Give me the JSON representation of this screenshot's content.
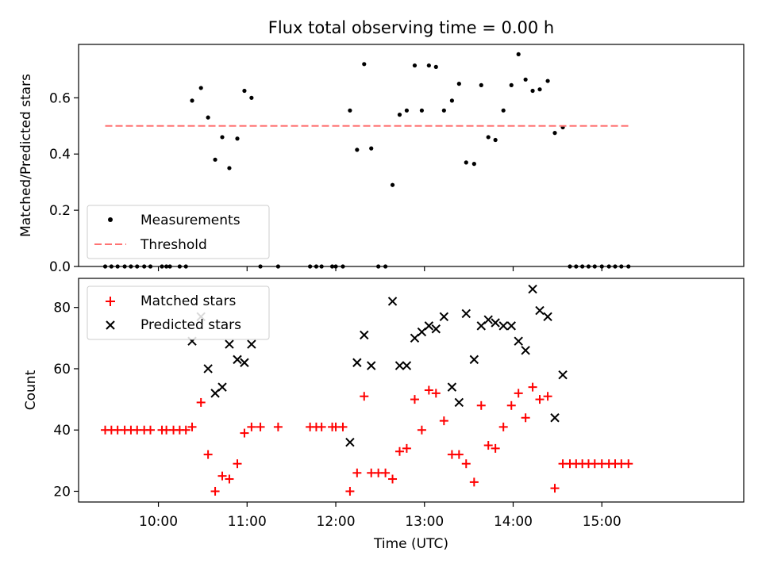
{
  "chart_data": [
    {
      "type": "scatter",
      "title": "Flux total observing time = 0.00 h",
      "xlabel": "",
      "ylabel": "Matched/Predicted stars",
      "xlim": [
        9.1,
        16.6
      ],
      "ylim": [
        0.0,
        0.79
      ],
      "yticks": [
        0.0,
        0.2,
        0.4,
        0.6
      ],
      "ytick_labels": [
        "0.0",
        "0.2",
        "0.4",
        "0.6"
      ],
      "xticks": [
        10,
        11,
        12,
        13,
        14,
        15
      ],
      "legend_position": "lower-left",
      "series": [
        {
          "name": "Measurements",
          "marker": "dot",
          "color": "#000000",
          "points": [
            [
              9.4,
              0
            ],
            [
              9.47,
              0
            ],
            [
              9.54,
              0
            ],
            [
              9.62,
              0
            ],
            [
              9.69,
              0
            ],
            [
              9.76,
              0
            ],
            [
              9.84,
              0
            ],
            [
              9.91,
              0
            ],
            [
              10.04,
              0
            ],
            [
              10.09,
              0
            ],
            [
              10.13,
              0
            ],
            [
              10.24,
              0
            ],
            [
              10.31,
              0
            ],
            [
              10.38,
              0.59
            ],
            [
              10.48,
              0.635
            ],
            [
              10.56,
              0.53
            ],
            [
              10.64,
              0.38
            ],
            [
              10.72,
              0.46
            ],
            [
              10.8,
              0.35
            ],
            [
              10.89,
              0.455
            ],
            [
              10.97,
              0.625
            ],
            [
              11.05,
              0.6
            ],
            [
              11.15,
              0
            ],
            [
              11.35,
              0
            ],
            [
              11.71,
              0
            ],
            [
              11.78,
              0
            ],
            [
              11.84,
              0
            ],
            [
              11.96,
              0
            ],
            [
              12.0,
              0
            ],
            [
              12.08,
              0
            ],
            [
              12.16,
              0.555
            ],
            [
              12.24,
              0.415
            ],
            [
              12.32,
              0.72
            ],
            [
              12.4,
              0.42
            ],
            [
              12.48,
              0
            ],
            [
              12.56,
              0
            ],
            [
              12.64,
              0.29
            ],
            [
              12.72,
              0.54
            ],
            [
              12.8,
              0.555
            ],
            [
              12.89,
              0.715
            ],
            [
              12.97,
              0.555
            ],
            [
              13.05,
              0.715
            ],
            [
              13.13,
              0.71
            ],
            [
              13.22,
              0.555
            ],
            [
              13.31,
              0.59
            ],
            [
              13.39,
              0.65
            ],
            [
              13.47,
              0.37
            ],
            [
              13.56,
              0.365
            ],
            [
              13.64,
              0.645
            ],
            [
              13.72,
              0.46
            ],
            [
              13.8,
              0.45
            ],
            [
              13.89,
              0.555
            ],
            [
              13.98,
              0.645
            ],
            [
              14.06,
              0.755
            ],
            [
              14.14,
              0.665
            ],
            [
              14.22,
              0.625
            ],
            [
              14.3,
              0.63
            ],
            [
              14.39,
              0.66
            ],
            [
              14.47,
              0.475
            ],
            [
              14.56,
              0.495
            ],
            [
              14.64,
              0
            ],
            [
              14.71,
              0
            ],
            [
              14.78,
              0
            ],
            [
              14.85,
              0
            ],
            [
              14.92,
              0
            ],
            [
              15.0,
              0
            ],
            [
              15.08,
              0
            ],
            [
              15.15,
              0
            ],
            [
              15.22,
              0
            ],
            [
              15.3,
              0
            ]
          ]
        },
        {
          "name": "Threshold",
          "style": "dashed",
          "color": "#ff7373",
          "x": [
            9.4,
            15.3
          ],
          "y": [
            0.5,
            0.5
          ]
        }
      ]
    },
    {
      "type": "scatter",
      "title": "",
      "xlabel": "Time (UTC)",
      "ylabel": "Count",
      "xlim": [
        9.1,
        16.6
      ],
      "ylim": [
        16.5,
        89.5
      ],
      "yticks": [
        20,
        40,
        60,
        80
      ],
      "ytick_labels": [
        "20",
        "40",
        "60",
        "80"
      ],
      "xticks": [
        10,
        11,
        12,
        13,
        14,
        15
      ],
      "xtick_labels": [
        "10:00",
        "11:00",
        "12:00",
        "13:00",
        "14:00",
        "15:00"
      ],
      "legend_position": "upper-left",
      "series": [
        {
          "name": "Matched stars",
          "marker": "plus",
          "color": "#ff0000",
          "points": [
            [
              9.4,
              40
            ],
            [
              9.47,
              40
            ],
            [
              9.54,
              40
            ],
            [
              9.62,
              40
            ],
            [
              9.69,
              40
            ],
            [
              9.76,
              40
            ],
            [
              9.84,
              40
            ],
            [
              9.91,
              40
            ],
            [
              10.04,
              40
            ],
            [
              10.09,
              40
            ],
            [
              10.17,
              40
            ],
            [
              10.24,
              40
            ],
            [
              10.31,
              40
            ],
            [
              10.38,
              41
            ],
            [
              10.48,
              49
            ],
            [
              10.56,
              32
            ],
            [
              10.64,
              20
            ],
            [
              10.72,
              25
            ],
            [
              10.8,
              24
            ],
            [
              10.89,
              29
            ],
            [
              10.97,
              39
            ],
            [
              11.05,
              41
            ],
            [
              11.15,
              41
            ],
            [
              11.35,
              41
            ],
            [
              11.71,
              41
            ],
            [
              11.78,
              41
            ],
            [
              11.84,
              41
            ],
            [
              11.96,
              41
            ],
            [
              12.0,
              41
            ],
            [
              12.08,
              41
            ],
            [
              12.16,
              20
            ],
            [
              12.24,
              26
            ],
            [
              12.32,
              51
            ],
            [
              12.4,
              26
            ],
            [
              12.48,
              26
            ],
            [
              12.56,
              26
            ],
            [
              12.64,
              24
            ],
            [
              12.72,
              33
            ],
            [
              12.8,
              34
            ],
            [
              12.89,
              50
            ],
            [
              12.97,
              40
            ],
            [
              13.05,
              53
            ],
            [
              13.13,
              52
            ],
            [
              13.22,
              43
            ],
            [
              13.31,
              32
            ],
            [
              13.39,
              32
            ],
            [
              13.47,
              29
            ],
            [
              13.56,
              23
            ],
            [
              13.64,
              48
            ],
            [
              13.72,
              35
            ],
            [
              13.8,
              34
            ],
            [
              13.89,
              41
            ],
            [
              13.98,
              48
            ],
            [
              14.06,
              52
            ],
            [
              14.14,
              44
            ],
            [
              14.22,
              54
            ],
            [
              14.3,
              50
            ],
            [
              14.39,
              51
            ],
            [
              14.47,
              21
            ],
            [
              14.56,
              29
            ],
            [
              14.64,
              29
            ],
            [
              14.71,
              29
            ],
            [
              14.78,
              29
            ],
            [
              14.85,
              29
            ],
            [
              14.92,
              29
            ],
            [
              15.0,
              29
            ],
            [
              15.08,
              29
            ],
            [
              15.15,
              29
            ],
            [
              15.22,
              29
            ],
            [
              15.3,
              29
            ]
          ]
        },
        {
          "name": "Predicted stars",
          "marker": "x",
          "color": "#000000",
          "points": [
            [
              10.38,
              69
            ],
            [
              10.48,
              77
            ],
            [
              10.56,
              60
            ],
            [
              10.64,
              52
            ],
            [
              10.72,
              54
            ],
            [
              10.8,
              68
            ],
            [
              10.89,
              63
            ],
            [
              10.97,
              62
            ],
            [
              11.05,
              68
            ],
            [
              12.16,
              36
            ],
            [
              12.24,
              62
            ],
            [
              12.32,
              71
            ],
            [
              12.4,
              61
            ],
            [
              12.64,
              82
            ],
            [
              12.72,
              61
            ],
            [
              12.8,
              61
            ],
            [
              12.89,
              70
            ],
            [
              12.97,
              72
            ],
            [
              13.05,
              74
            ],
            [
              13.13,
              73
            ],
            [
              13.22,
              77
            ],
            [
              13.31,
              54
            ],
            [
              13.39,
              49
            ],
            [
              13.47,
              78
            ],
            [
              13.56,
              63
            ],
            [
              13.64,
              74
            ],
            [
              13.72,
              76
            ],
            [
              13.8,
              75
            ],
            [
              13.89,
              74
            ],
            [
              13.98,
              74
            ],
            [
              14.06,
              69
            ],
            [
              14.14,
              66
            ],
            [
              14.22,
              86
            ],
            [
              14.3,
              79
            ],
            [
              14.39,
              77
            ],
            [
              14.47,
              44
            ],
            [
              14.56,
              58
            ]
          ]
        }
      ]
    }
  ]
}
